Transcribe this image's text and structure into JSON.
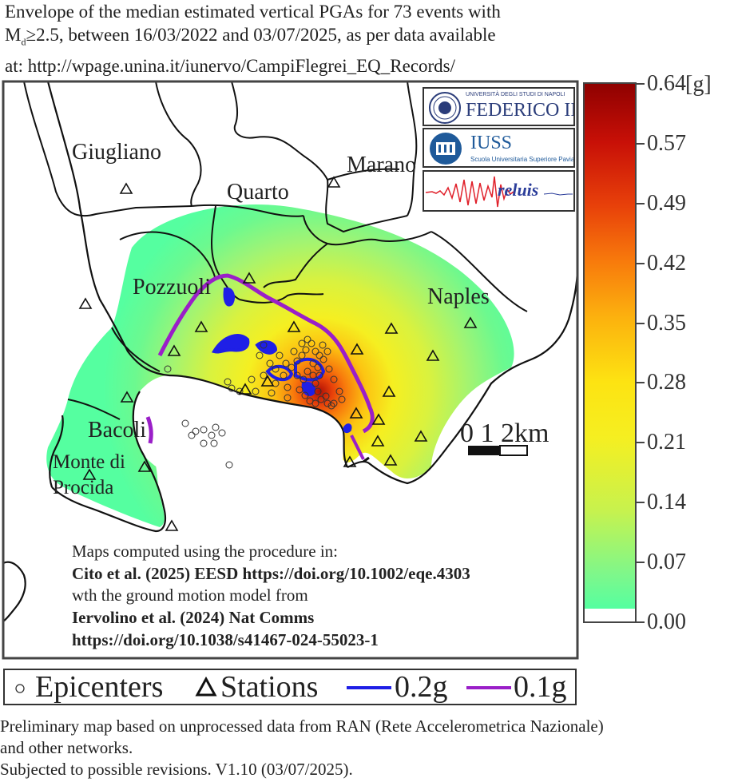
{
  "title": {
    "line1": "Envelope of the median estimated vertical PGAs  for 73 events with",
    "line2_prefix": "M",
    "line2_sub": "d",
    "line2_rest": "≥2.5, between 16/03/2022 and 03/07/2025, as per data available",
    "line3": "at: http://wpage.unina.it/iunervo/CampiFlegrei_EQ_Records/"
  },
  "places": {
    "giugliano": "Giugliano",
    "quarto": "Quarto",
    "marano": "Marano",
    "pozzuoli": "Pozzuoli",
    "naples": "Naples",
    "bacoli": "Bacoli",
    "monte_di_procida_1": "Monte di",
    "monte_di_procida_2": "Procida"
  },
  "scalebar": {
    "label": "0  1  2km"
  },
  "logos": {
    "federico_top": "UNIVERSITÀ DEGLI STUDI DI NAPOLI",
    "federico_main": "FEDERICO II",
    "iuss_main": "IUSS",
    "iuss_sub": "Scuola Universitaria Superiore Pavia",
    "reluis": "reluis"
  },
  "references": {
    "l1": "Maps computed using the procedure in:",
    "l2": "Cito et al. (2025) EESD https://doi.org/10.1002/eqe.4303",
    "l3": "wth the ground motion model from",
    "l4": "Iervolino et al. (2024) Nat Comms",
    "l5": "https://doi.org/10.1038/s41467-024-55023-1"
  },
  "colorbar": {
    "unit": "[g]",
    "ticks": [
      "0.64",
      "0.57",
      "0.49",
      "0.42",
      "0.35",
      "0.28",
      "0.21",
      "0.14",
      "0.07",
      "0.00"
    ],
    "colors": [
      "#55ffa0",
      "#c8f24d",
      "#f5ef21",
      "#fcb20e",
      "#f87b0c",
      "#e8410a",
      "#8c0000"
    ]
  },
  "legend": {
    "epicenters": "Epicenters",
    "stations": "Stations",
    "c02": "0.2g",
    "c01": "0.1g",
    "c02_color": "#1f1fe6",
    "c01_color": "#9a1fc8"
  },
  "footer": {
    "l1": "Preliminary map based on unprocessed data from RAN (Rete Accelerometrica Nazionale)",
    "l2": "and other networks.",
    "l3": "Subjected to possible revisions. V1.10 (03/07/2025)."
  }
}
